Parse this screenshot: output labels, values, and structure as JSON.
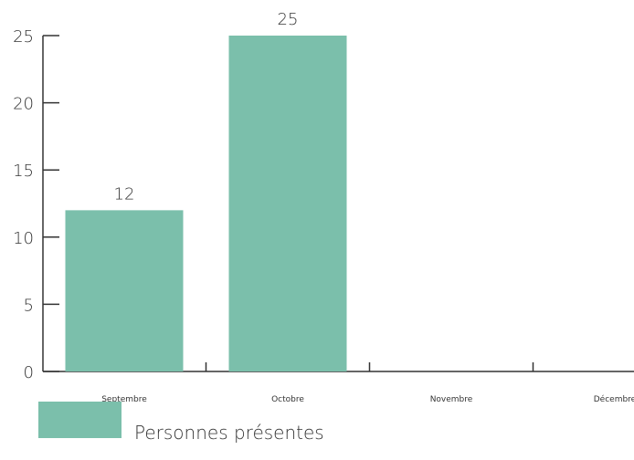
{
  "colors": {
    "bar": "#7bbfab",
    "axis": "#333333",
    "text": "#333333"
  },
  "chart_data": {
    "type": "bar",
    "title": "",
    "xlabel": "",
    "ylabel": "",
    "categories": [
      "Septembre",
      "Octobre",
      "Novembre",
      "Décembre"
    ],
    "series": [
      {
        "name": "Personnes présentes",
        "values": [
          12,
          25,
          null,
          null
        ]
      }
    ],
    "data_labels": [
      "12",
      "25",
      "",
      ""
    ],
    "ylim": [
      0,
      25
    ],
    "yticks": [
      0,
      5,
      10,
      15,
      20,
      25
    ],
    "grid": false,
    "legend_position": "bottom-left"
  },
  "legend": {
    "label": "Personnes présentes"
  }
}
